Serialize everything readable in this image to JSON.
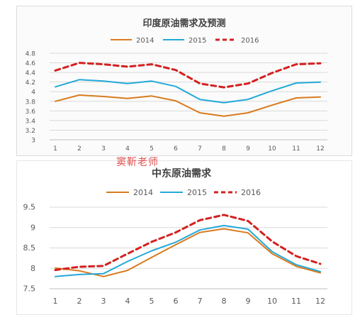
{
  "watermark": "窦靳老师",
  "colors": {
    "2014": "#d97b1e",
    "2015": "#23a9d8",
    "2016": "#d42020",
    "grid": "#d9d9d9",
    "axis": "#bfbfbf"
  },
  "chart_data": [
    {
      "type": "line",
      "title": "印度原油需求及预测",
      "x": [
        1,
        2,
        3,
        4,
        5,
        6,
        7,
        8,
        9,
        10,
        11,
        12
      ],
      "xticks": [
        "1",
        "2",
        "3",
        "4",
        "5",
        "6",
        "7",
        "8",
        "9",
        "10",
        "11",
        "12"
      ],
      "ylim": [
        3,
        4.8
      ],
      "yticks": [
        "3",
        "3.2",
        "3.4",
        "3.6",
        "3.8",
        "4",
        "4.2",
        "4.4",
        "4.6",
        "4.8"
      ],
      "ytick_values": [
        3,
        3.2,
        3.4,
        3.6,
        3.8,
        4,
        4.2,
        4.4,
        4.6,
        4.8
      ],
      "grid": true,
      "legend": "top",
      "series": [
        {
          "name": "2014",
          "style": "solid",
          "values": [
            3.8,
            3.93,
            3.9,
            3.86,
            3.91,
            3.81,
            3.56,
            3.49,
            3.56,
            3.72,
            3.87,
            3.89
          ]
        },
        {
          "name": "2015",
          "style": "solid",
          "values": [
            4.1,
            4.25,
            4.22,
            4.17,
            4.22,
            4.11,
            3.84,
            3.77,
            3.84,
            4.02,
            4.18,
            4.2
          ]
        },
        {
          "name": "2016",
          "style": "dashed",
          "values": [
            4.44,
            4.6,
            4.57,
            4.52,
            4.57,
            4.45,
            4.17,
            4.09,
            4.17,
            4.39,
            4.57,
            4.59
          ]
        }
      ]
    },
    {
      "type": "line",
      "title": "中东原油需求",
      "x": [
        1,
        2,
        3,
        4,
        5,
        6,
        7,
        8,
        9,
        10,
        11,
        12
      ],
      "xticks": [
        "1",
        "2",
        "3",
        "4",
        "5",
        "6",
        "7",
        "8",
        "9",
        "10",
        "11",
        "12"
      ],
      "ylim": [
        7.5,
        9.5
      ],
      "yticks": [
        "7.5",
        "8",
        "8.5",
        "9",
        "9.5"
      ],
      "ytick_values": [
        7.5,
        8,
        8.5,
        9,
        9.5
      ],
      "grid": true,
      "legend": "top",
      "series": [
        {
          "name": "2014",
          "style": "solid",
          "values": [
            8.01,
            7.94,
            7.8,
            7.95,
            8.27,
            8.58,
            8.88,
            8.97,
            8.87,
            8.36,
            8.05,
            7.89
          ]
        },
        {
          "name": "2015",
          "style": "solid",
          "values": [
            7.8,
            7.85,
            7.87,
            8.17,
            8.43,
            8.64,
            8.94,
            9.05,
            8.96,
            8.41,
            8.09,
            7.92
          ]
        },
        {
          "name": "2016",
          "style": "dashed",
          "values": [
            7.96,
            8.04,
            8.06,
            8.36,
            8.65,
            8.88,
            9.18,
            9.31,
            9.16,
            8.66,
            8.3,
            8.11
          ]
        }
      ]
    }
  ]
}
